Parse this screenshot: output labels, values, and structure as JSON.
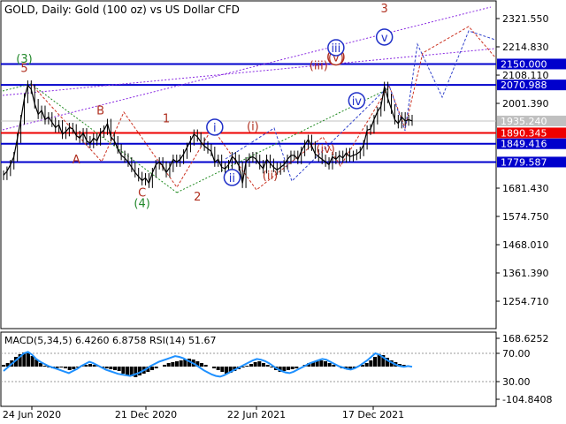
{
  "chart_data": {
    "type": "line",
    "title": "GOLD, Daily:  Gold (100 oz) vs US Dollar CFD",
    "price_axis": {
      "ticks": [
        "2321.550",
        "2214.830",
        "2108.110",
        "2001.390",
        "1681.430",
        "1574.750",
        "1468.010",
        "1361.390",
        "1254.710"
      ],
      "ylim": [
        1200,
        2360
      ]
    },
    "time_axis": {
      "labels": [
        "24 Jun 2020",
        "21 Dec 2020",
        "22 Jun 2021",
        "17 Dec 2021"
      ]
    },
    "series": [
      {
        "values": [
          1730,
          1745,
          1770,
          1800,
          1870,
          1940,
          2020,
          2070,
          2055,
          2000,
          1960,
          1975,
          1940,
          1950,
          1930,
          1910,
          1920,
          1885,
          1895,
          1910,
          1905,
          1880,
          1870,
          1890,
          1860,
          1850,
          1870,
          1860,
          1890,
          1900,
          1925,
          1875,
          1860,
          1830,
          1805,
          1795,
          1780,
          1760,
          1740,
          1725,
          1710,
          1720,
          1700,
          1740,
          1770,
          1780,
          1765,
          1740,
          1760,
          1790,
          1780,
          1790,
          1810,
          1835,
          1860,
          1885,
          1875,
          1855,
          1840,
          1830,
          1820,
          1780,
          1790,
          1760,
          1755,
          1770,
          1800,
          1790,
          1765,
          1700,
          1780,
          1795,
          1800,
          1790,
          1770,
          1755,
          1790,
          1775,
          1760,
          1750,
          1760,
          1770,
          1790,
          1805,
          1805,
          1790,
          1820,
          1845,
          1865,
          1840,
          1810,
          1800,
          1790,
          1780,
          1770,
          1800,
          1790,
          1805,
          1795,
          1815,
          1800,
          1805,
          1810,
          1820,
          1845,
          1900,
          1905,
          1940,
          1970,
          1990,
          2065,
          2020,
          1980,
          1940,
          1925,
          1950,
          1935,
          1940,
          1935
        ]
      }
    ],
    "levels": [
      {
        "label": "2150.000",
        "value": 2150,
        "color": "#0000cc"
      },
      {
        "label": "2070.988",
        "value": 2071,
        "color": "#0000cc"
      },
      {
        "label": "1935.240",
        "value": 1935,
        "color": "#c0c0c0"
      },
      {
        "label": "1890.345",
        "value": 1890,
        "color": "#ee0000"
      },
      {
        "label": "1849.416",
        "value": 1849,
        "color": "#0000cc"
      },
      {
        "label": "1779.587",
        "value": 1780,
        "color": "#0000cc"
      }
    ],
    "wave_labels": [
      {
        "text": "(3)",
        "color": "#22882a",
        "i": 6,
        "y": 2155,
        "circle": false
      },
      {
        "text": "5",
        "color": "#b03020",
        "i": 6,
        "y": 2120,
        "circle": false
      },
      {
        "text": "A",
        "color": "#b03020",
        "i": 21,
        "y": 1775,
        "circle": false
      },
      {
        "text": "B",
        "color": "#b03020",
        "i": 28,
        "y": 1960,
        "circle": false
      },
      {
        "text": "C",
        "color": "#b03020",
        "i": 40,
        "y": 1650,
        "circle": false
      },
      {
        "text": "(4)",
        "color": "#22882a",
        "i": 40,
        "y": 1610,
        "circle": false
      },
      {
        "text": "1",
        "color": "#b03020",
        "i": 47,
        "y": 1930,
        "circle": false
      },
      {
        "text": "2",
        "color": "#b03020",
        "i": 56,
        "y": 1635,
        "circle": false
      },
      {
        "text": "i",
        "color": "#2030c8",
        "i": 61,
        "y": 1895,
        "circle": true
      },
      {
        "text": "ii",
        "color": "#2030c8",
        "i": 66,
        "y": 1705,
        "circle": true
      },
      {
        "text": "(i)",
        "color": "#b03020",
        "i": 72,
        "y": 1900,
        "circle": false
      },
      {
        "text": "(ii)",
        "color": "#b03020",
        "i": 77,
        "y": 1715,
        "circle": false
      },
      {
        "text": "(iii)",
        "color": "#b03020",
        "i": 91,
        "y": 2130,
        "circle": false
      },
      {
        "text": "(iv)",
        "color": "#b03020",
        "i": 93,
        "y": 1815,
        "circle": false
      },
      {
        "text": "(v)",
        "color": "#b03020",
        "i": 96,
        "y": 2160,
        "circle": true
      },
      {
        "text": "iii",
        "color": "#2030c8",
        "i": 96,
        "y": 2195,
        "circle": true
      },
      {
        "text": "iv",
        "color": "#2030c8",
        "i": 102,
        "y": 1995,
        "circle": true
      },
      {
        "text": "v",
        "color": "#2030c8",
        "i": 110,
        "y": 2235,
        "circle": true
      },
      {
        "text": "3",
        "color": "#b03020",
        "i": 110,
        "y": 2345,
        "circle": false
      }
    ],
    "indicator": {
      "caption": "MACD(5,34,5) 6.4260 6.8758 RSI(14) 51.67",
      "ticks": [
        "168.6252",
        "70.00",
        "30.00",
        "-104.8408"
      ],
      "histogram": [
        10,
        20,
        35,
        55,
        70,
        80,
        75,
        60,
        40,
        20,
        5,
        -5,
        -10,
        -8,
        -5,
        -10,
        -20,
        -15,
        -5,
        5,
        10,
        15,
        10,
        5,
        -5,
        -10,
        -15,
        -20,
        -25,
        -40,
        -50,
        -55,
        -60,
        -50,
        -40,
        -30,
        -20,
        -10,
        0,
        10,
        20,
        25,
        30,
        35,
        40,
        45,
        40,
        30,
        20,
        10,
        0,
        -10,
        -20,
        -30,
        -40,
        -35,
        -25,
        -15,
        -5,
        5,
        15,
        25,
        30,
        20,
        10,
        -5,
        -20,
        -30,
        -25,
        -20,
        -15,
        -10,
        0,
        10,
        20,
        25,
        30,
        35,
        30,
        20,
        10,
        0,
        -10,
        -15,
        -20,
        -10,
        0,
        10,
        20,
        35,
        55,
        70,
        65,
        50,
        35,
        25,
        15,
        10,
        5,
        0
      ],
      "rsi": [
        45,
        50,
        55,
        60,
        65,
        70,
        72,
        68,
        62,
        58,
        55,
        52,
        50,
        48,
        46,
        44,
        42,
        45,
        48,
        52,
        55,
        58,
        56,
        53,
        50,
        47,
        45,
        43,
        41,
        40,
        39,
        38,
        40,
        42,
        45,
        48,
        52,
        55,
        58,
        60,
        62,
        64,
        66,
        65,
        63,
        60,
        57,
        54,
        50,
        46,
        43,
        40,
        38,
        37,
        39,
        42,
        45,
        48,
        51,
        54,
        57,
        60,
        62,
        61,
        59,
        56,
        52,
        48,
        45,
        43,
        42,
        44,
        47,
        50,
        53,
        56,
        58,
        60,
        62,
        61,
        58,
        55,
        52,
        50,
        48,
        47,
        49,
        52,
        56,
        60,
        65,
        70,
        68,
        64,
        60,
        57,
        54,
        52,
        51,
        52,
        51
      ]
    }
  }
}
